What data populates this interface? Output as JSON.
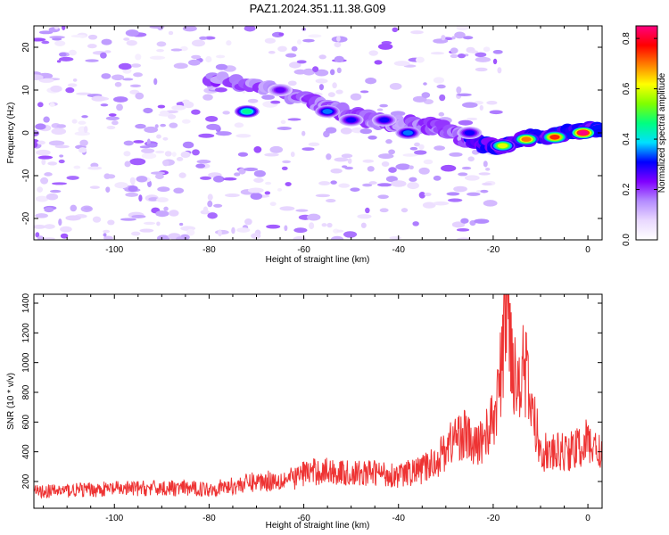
{
  "title": "PAZ1.2024.351.11.38.G09",
  "chart_data": [
    {
      "type": "heatmap",
      "xlabel": "Height of straight line (km)",
      "ylabel": "Frequency (Hz)",
      "xlim": [
        -117,
        3
      ],
      "ylim": [
        -25,
        25
      ],
      "xticks": [
        -100,
        -80,
        -60,
        -40,
        -20,
        0
      ],
      "yticks": [
        -20,
        -10,
        0,
        10,
        20
      ],
      "colorbar": {
        "label": "Normalized spectral amplitude",
        "range": [
          0,
          0.85
        ],
        "ticks": [
          "0.0",
          "0.2",
          "0.4",
          "0.6",
          "0.8"
        ],
        "colors": [
          "#ffffff",
          "#e9d8ff",
          "#b48cff",
          "#8000ff",
          "#0000ff",
          "#00e0ff",
          "#00ff80",
          "#80ff00",
          "#ffff00",
          "#ff8000",
          "#ff0000",
          "#ff0080"
        ]
      },
      "ridge": {
        "x": [
          -80,
          -70,
          -60,
          -55,
          -50,
          -45,
          -40,
          -35,
          -30,
          -25,
          -20,
          -15,
          -10,
          -5,
          0,
          3
        ],
        "y": [
          13,
          11,
          8,
          6,
          4,
          3,
          2,
          2,
          1,
          -2,
          -3,
          -2,
          -1,
          0,
          0.5,
          1
        ]
      },
      "hotspots": [
        {
          "x": -72,
          "y": 5,
          "value": 0.45
        },
        {
          "x": -65,
          "y": 10,
          "value": 0.25
        },
        {
          "x": -55,
          "y": 5,
          "value": 0.35
        },
        {
          "x": -50,
          "y": 3,
          "value": 0.3
        },
        {
          "x": -43,
          "y": 3,
          "value": 0.3
        },
        {
          "x": -38,
          "y": 0,
          "value": 0.35
        },
        {
          "x": -25,
          "y": 0,
          "value": 0.3
        },
        {
          "x": -18,
          "y": -3,
          "value": 0.6
        },
        {
          "x": -13,
          "y": -1.5,
          "value": 0.7
        },
        {
          "x": -7,
          "y": -1,
          "value": 0.75
        },
        {
          "x": -1,
          "y": 0,
          "value": 0.85
        }
      ]
    },
    {
      "type": "line",
      "xlabel": "Height of straight line (km)",
      "ylabel": "SNR (10 * v/v)",
      "xlim": [
        -117,
        3
      ],
      "ylim": [
        20,
        1460
      ],
      "xticks": [
        -100,
        -80,
        -60,
        -40,
        -20,
        0
      ],
      "yticks": [
        200,
        400,
        600,
        800,
        1000,
        1200,
        1400
      ],
      "color": "#ee3333",
      "series": [
        {
          "x": [
            -117,
            -110,
            -100,
            -90,
            -80,
            -75,
            -70,
            -62,
            -60,
            -55,
            -50,
            -45,
            -40,
            -35,
            -32,
            -30,
            -28,
            -26,
            -24,
            -22,
            -20,
            -19,
            -18,
            -17.5,
            -17,
            -16,
            -15,
            -14,
            -13,
            -12,
            -10,
            -8,
            -5,
            -2,
            0,
            2,
            3
          ],
          "y": [
            130,
            140,
            150,
            155,
            150,
            170,
            200,
            220,
            260,
            270,
            250,
            260,
            240,
            280,
            340,
            420,
            500,
            520,
            420,
            500,
            600,
            800,
            1000,
            1380,
            1400,
            1100,
            800,
            1050,
            900,
            700,
            420,
            380,
            400,
            420,
            470,
            400,
            420
          ]
        }
      ]
    }
  ]
}
